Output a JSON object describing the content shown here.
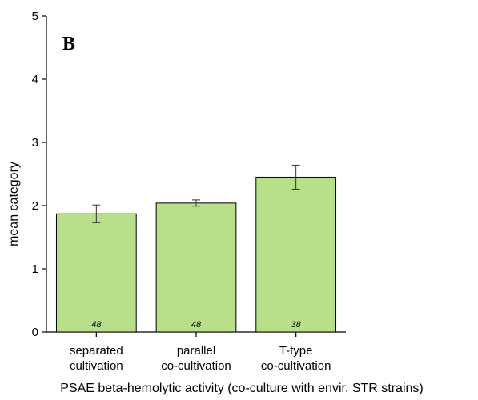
{
  "chart_data": {
    "type": "bar",
    "panel_label": "B",
    "categories": [
      [
        "separated",
        "cultivation"
      ],
      [
        "parallel",
        "co-cultivation"
      ],
      [
        "T-type",
        "co-cultivation"
      ]
    ],
    "values": [
      1.87,
      2.04,
      2.45
    ],
    "errors": [
      0.14,
      0.05,
      0.19
    ],
    "n_labels": [
      "48",
      "48",
      "38"
    ],
    "xlabel": "PSAE beta-hemolytic activity (co-culture with envir. STR strains)",
    "ylabel": "mean category",
    "ylim": [
      0,
      5
    ],
    "yticks": [
      "0",
      "1",
      "2",
      "3",
      "4",
      "5"
    ],
    "grid": false,
    "bar_color": "#b8e08a"
  }
}
